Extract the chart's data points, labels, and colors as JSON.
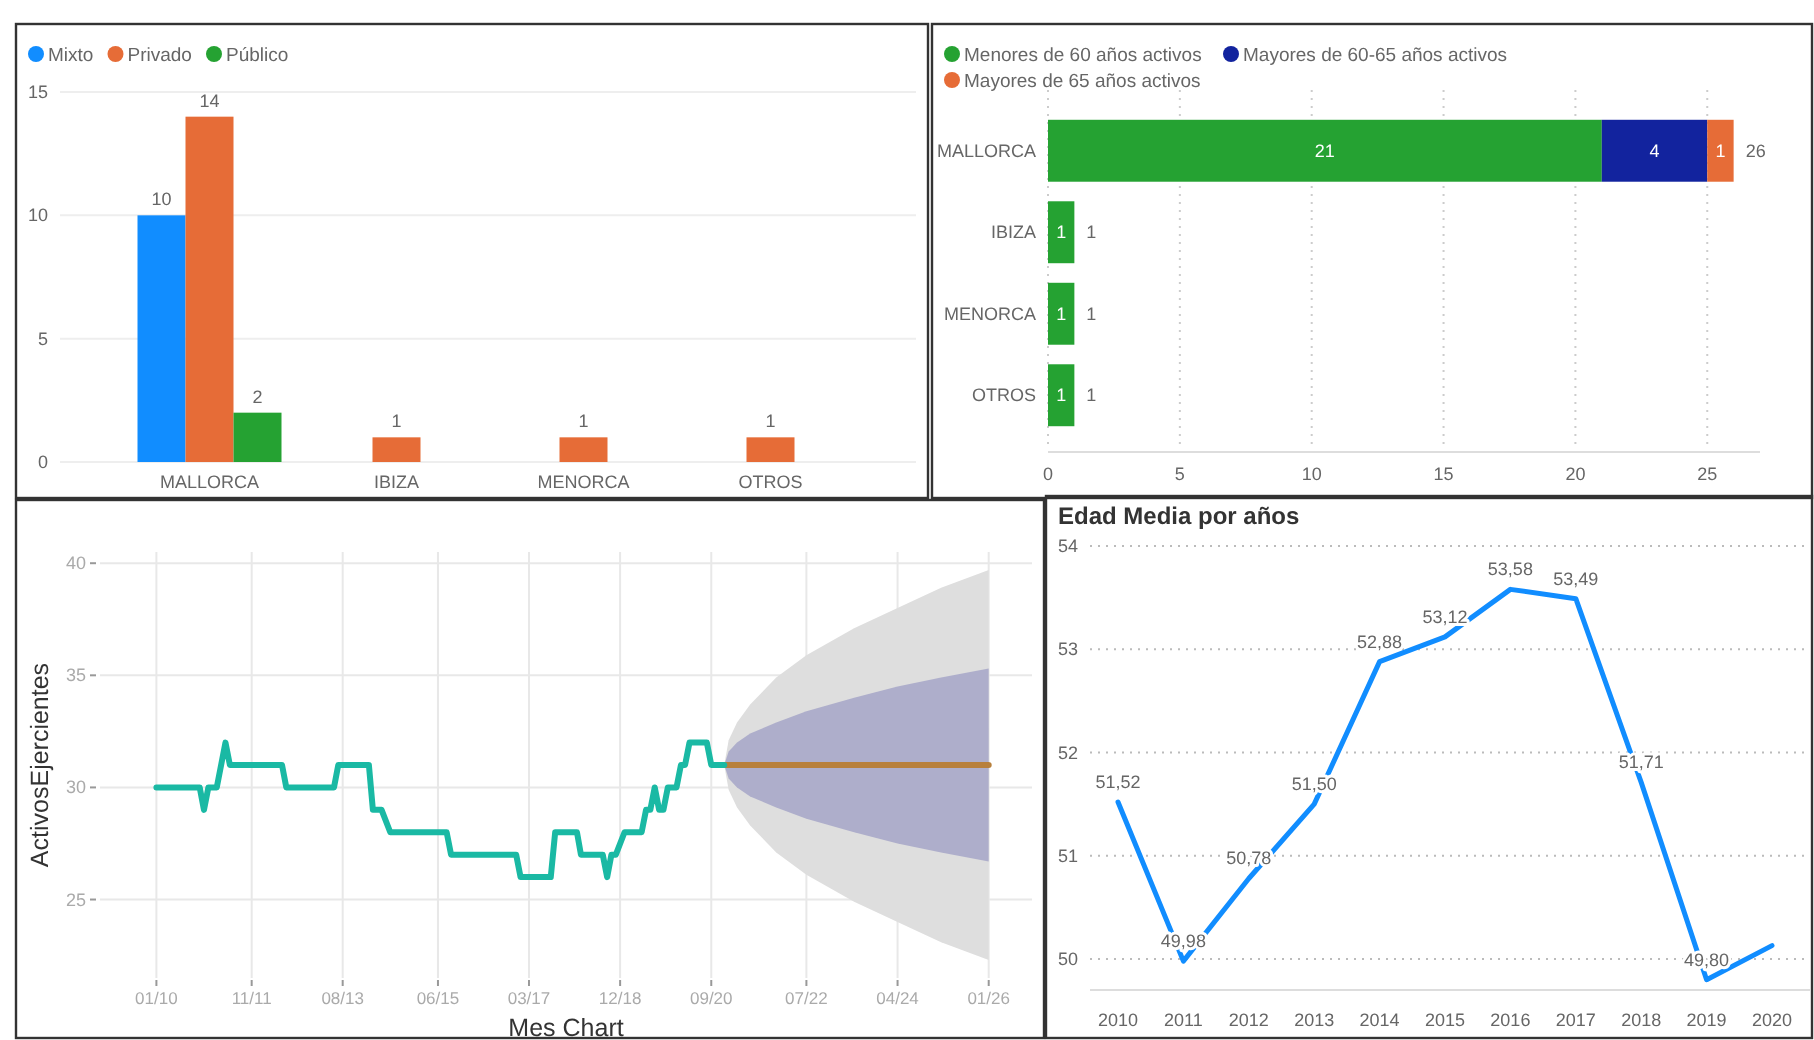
{
  "chart_data": [
    {
      "type": "bar",
      "categories": [
        "MALLORCA",
        "IBIZA",
        "MENORCA",
        "OTROS"
      ],
      "series": [
        {
          "name": "Mixto",
          "color": "#118dff",
          "values": [
            10,
            null,
            null,
            null
          ]
        },
        {
          "name": "Privado",
          "color": "#e66c37",
          "values": [
            14,
            1,
            1,
            1
          ]
        },
        {
          "name": "Público",
          "color": "#25a232",
          "values": [
            2,
            null,
            null,
            null
          ]
        }
      ],
      "ylim": [
        0,
        15
      ],
      "yticks": [
        0,
        5,
        10,
        15
      ],
      "grid": "y",
      "legend": "top left",
      "data_labels": true
    },
    {
      "type": "bar",
      "orientation": "horizontal",
      "stacked": true,
      "categories": [
        "MALLORCA",
        "IBIZA",
        "MENORCA",
        "OTROS"
      ],
      "series": [
        {
          "name": "Menores de 60 años activos",
          "color": "#25a232",
          "values": [
            21,
            1,
            1,
            1
          ]
        },
        {
          "name": "Mayores de 60-65 años activos",
          "color": "#12239e",
          "values": [
            4,
            null,
            null,
            null
          ]
        },
        {
          "name": "Mayores de 65 años activos",
          "color": "#e66c37",
          "values": [
            1,
            null,
            null,
            null
          ]
        }
      ],
      "xlim": [
        0,
        27
      ],
      "xticks": [
        0,
        5,
        10,
        15,
        20,
        25
      ],
      "grid": "x",
      "legend": "top left",
      "data_labels": true,
      "totals": [
        "26",
        "1",
        "1",
        "1"
      ]
    },
    {
      "type": "line",
      "xlabel": "Mes Chart",
      "ylabel": "ActivosEjercientes",
      "xlim": [
        "2008-12",
        "2026-11"
      ],
      "xticks": [
        {
          "value": "2010-01",
          "label": "01/10"
        },
        {
          "value": "2011-11",
          "label": "11/11"
        },
        {
          "value": "2013-08",
          "label": "08/13"
        },
        {
          "value": "2015-06",
          "label": "06/15"
        },
        {
          "value": "2017-03",
          "label": "03/17"
        },
        {
          "value": "2018-12",
          "label": "12/18"
        },
        {
          "value": "2020-09",
          "label": "09/20"
        },
        {
          "value": "2022-07",
          "label": "07/22"
        },
        {
          "value": "2024-04",
          "label": "04/24"
        },
        {
          "value": "2026-01",
          "label": "01/26"
        }
      ],
      "ylim": [
        21.5,
        40.5
      ],
      "yticks": [
        25,
        30,
        35,
        40
      ],
      "grid": true,
      "series": [
        {
          "type": "line",
          "color": "#dedede",
          "x": [
            "2020-12",
            "2021-01",
            "2021-03",
            "2021-06",
            "2021-12",
            "2022-07",
            "2023-06",
            "2024-04",
            "2025-02",
            "2026-01"
          ],
          "values": [
            null,
            null,
            null,
            null,
            null,
            null,
            null,
            null,
            null,
            null
          ],
          "lower": [
            31,
            29.9,
            29.1,
            28.3,
            27.1,
            26.1,
            24.9,
            24.0,
            23.1,
            22.3
          ],
          "upper": [
            31,
            32.1,
            32.9,
            33.7,
            34.9,
            35.9,
            37.1,
            38.0,
            38.9,
            39.7
          ]
        },
        {
          "type": "line",
          "color": "#aeaecb",
          "x": [
            "2020-12",
            "2021-01",
            "2021-03",
            "2021-06",
            "2021-12",
            "2022-07",
            "2023-06",
            "2024-04",
            "2025-02",
            "2026-01"
          ],
          "values": [
            null,
            null,
            null,
            null,
            null,
            null,
            null,
            null,
            null,
            null
          ],
          "lower": [
            31,
            30.4,
            30.0,
            29.6,
            29.1,
            28.6,
            28.0,
            27.5,
            27.1,
            26.7
          ],
          "upper": [
            31,
            31.6,
            32.0,
            32.4,
            32.9,
            33.4,
            34.0,
            34.5,
            34.9,
            35.3
          ]
        },
        {
          "type": "line",
          "color": "#b8803c",
          "x": [
            "2020-12",
            "2026-01"
          ],
          "values": [
            31,
            31
          ]
        },
        {
          "type": "line",
          "color": "#1ab9a4",
          "x": [
            "2010-01",
            "2010-11",
            "2010-12",
            "2011-01",
            "2011-03",
            "2011-05",
            "2011-06",
            "2012-06",
            "2012-07",
            "2013-06",
            "2013-07",
            "2014-02",
            "2014-03",
            "2014-05",
            "2014-07",
            "2015-08",
            "2015-09",
            "2016-12",
            "2017-01",
            "2017-08",
            "2017-09",
            "2018-02",
            "2018-03",
            "2018-08",
            "2018-09",
            "2018-10",
            "2018-11",
            "2019-01",
            "2019-05",
            "2019-06",
            "2019-07",
            "2019-08",
            "2019-09",
            "2019-10",
            "2019-11",
            "2020-01",
            "2020-02",
            "2020-03",
            "2020-04",
            "2020-08",
            "2020-09",
            "2020-12"
          ],
          "values": [
            30,
            30,
            29,
            30,
            30,
            32,
            31,
            31,
            30,
            30,
            31,
            31,
            29,
            29,
            28,
            28,
            27,
            27,
            26,
            26,
            28,
            28,
            27,
            27,
            26,
            27,
            27,
            28,
            28,
            29,
            29,
            30,
            29,
            29,
            30,
            30,
            31,
            31,
            32,
            32,
            31,
            31
          ]
        }
      ]
    },
    {
      "type": "line",
      "title": "Edad Media por años",
      "categories": [
        "2010",
        "2011",
        "2012",
        "2013",
        "2014",
        "2015",
        "2016",
        "2017",
        "2018",
        "2019",
        "2020"
      ],
      "series": [
        {
          "color": "#118dff",
          "values": [
            51.52,
            49.98,
            50.78,
            51.5,
            52.88,
            53.12,
            53.58,
            53.49,
            51.71,
            49.8,
            50.13
          ],
          "value_labels": [
            "51,52",
            "49,98",
            "50,78",
            "51,50",
            "52,88",
            "53,12",
            "53,58",
            "53,49",
            "51,71",
            "49,80",
            null
          ]
        }
      ],
      "ylim": [
        49.7,
        54
      ],
      "yticks": [
        50,
        51,
        52,
        53,
        54
      ],
      "grid": "y"
    }
  ]
}
